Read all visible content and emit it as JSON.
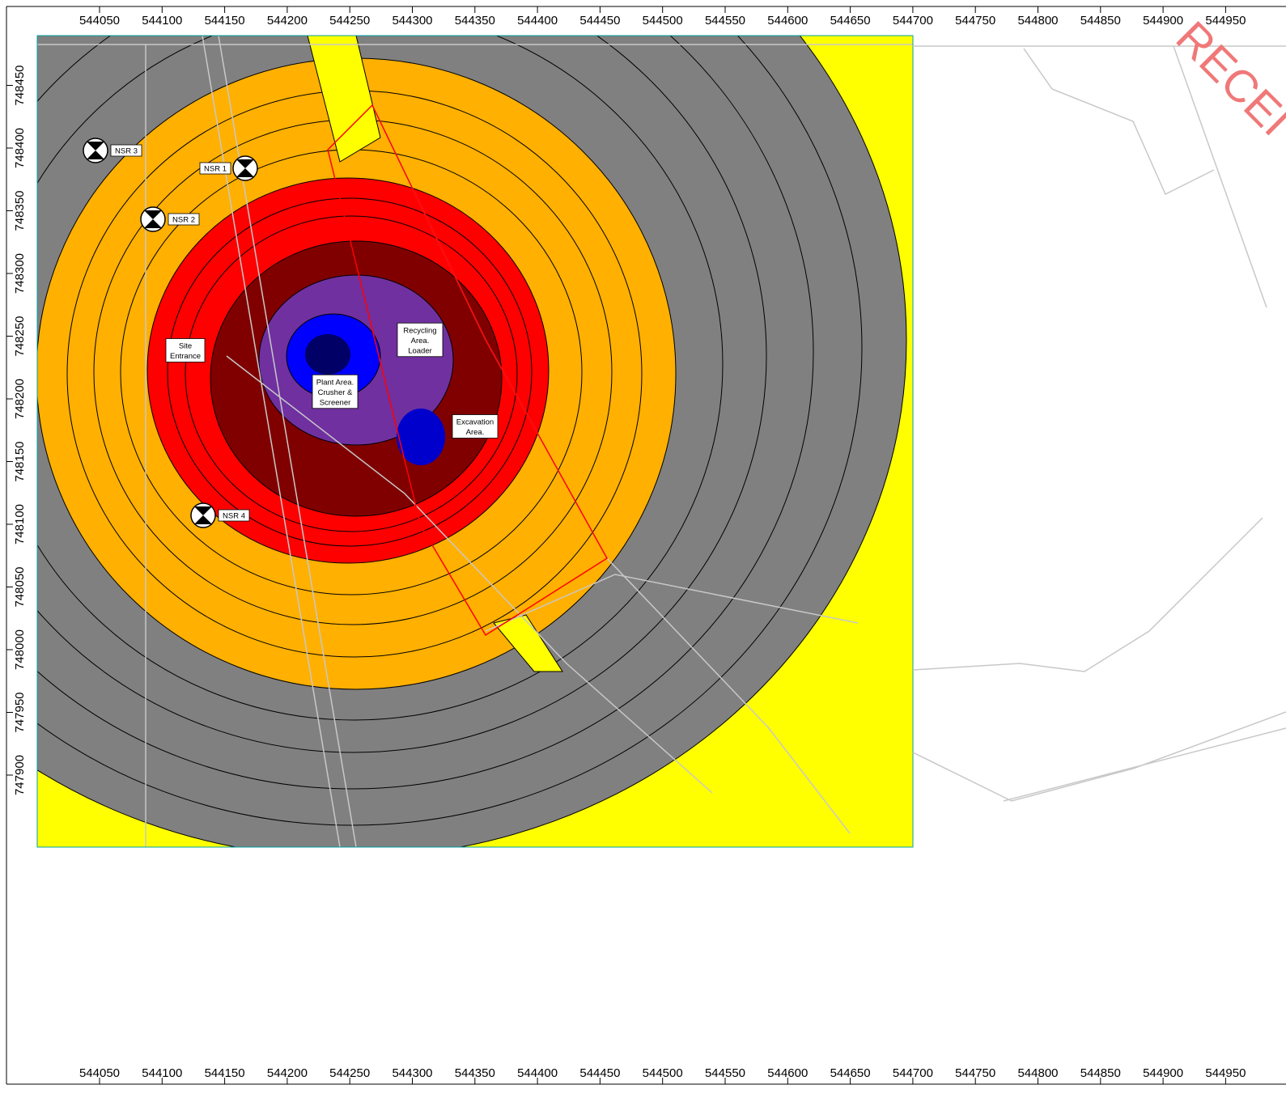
{
  "x_axis": {
    "ticks": [
      544050,
      544100,
      544150,
      544200,
      544250,
      544300,
      544350,
      544400,
      544450,
      544500,
      544550,
      544600,
      544650,
      544700,
      544750,
      544800,
      544850,
      544900,
      544950
    ]
  },
  "y_axis": {
    "ticks": [
      747900,
      747950,
      748000,
      748050,
      748100,
      748150,
      748200,
      748250,
      748300,
      748350,
      748400,
      748450
    ]
  },
  "receptors": [
    {
      "label": "NSR 3"
    },
    {
      "label": "NSR 1"
    },
    {
      "label": "NSR 2"
    },
    {
      "label": "NSR 4"
    }
  ],
  "areas": [
    {
      "lines": [
        "Site",
        "Entrance"
      ]
    },
    {
      "lines": [
        "Recycling",
        "Area.",
        "Loader"
      ]
    },
    {
      "lines": [
        "Plant Area.",
        "Crusher &",
        "Screener"
      ]
    },
    {
      "lines": [
        "Excavation",
        "Area."
      ]
    }
  ],
  "watermark": "RECEI"
}
